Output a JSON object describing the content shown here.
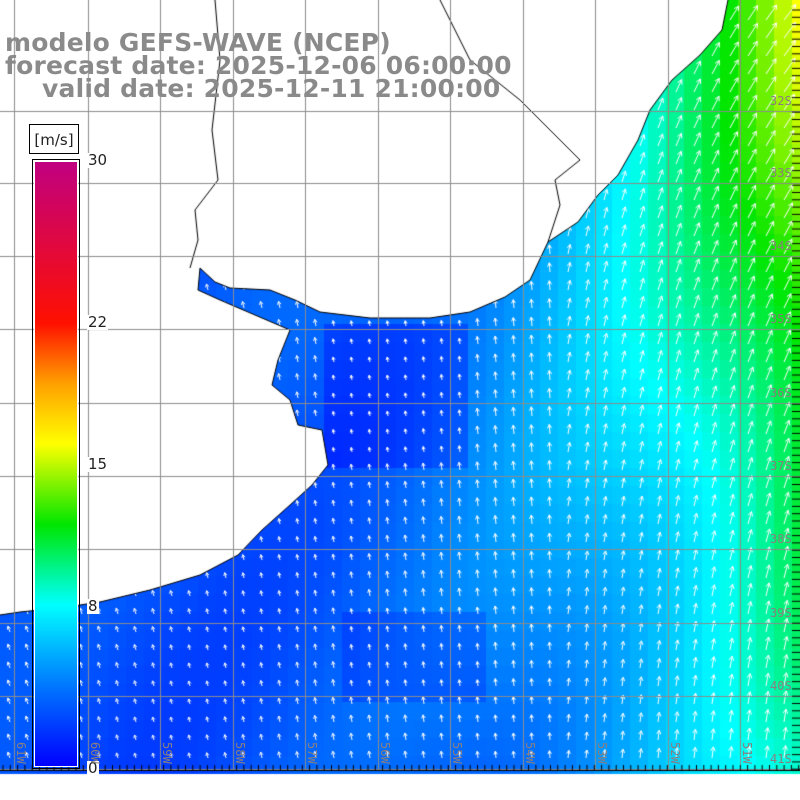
{
  "title": {
    "model": "modelo GEFS-WAVE (NCEP)",
    "forecast": "forecast date: 2025-12-06 06:00:00",
    "valid": "valid date: 2025-12-11 21:00:00"
  },
  "colorbar": {
    "units": "[m/s]",
    "ticks": [
      "30",
      "22",
      "15",
      "8",
      "0"
    ],
    "tick_values": [
      30,
      22,
      15,
      8,
      0
    ],
    "colors": [
      "#0000ff",
      "#0078ff",
      "#00ffff",
      "#00e600",
      "#ffff00",
      "#ffa000",
      "#ff1000",
      "#c00080"
    ],
    "color_stops": [
      0,
      4,
      8,
      12,
      16,
      19,
      22,
      30
    ]
  },
  "lat_labels": [
    "32S",
    "33S",
    "34S",
    "35S",
    "36S",
    "37S",
    "38S",
    "39S",
    "40S",
    "41S"
  ],
  "lon_labels": [
    "61W",
    "60W",
    "59W",
    "58W",
    "57W",
    "56W",
    "55W",
    "54W",
    "53W",
    "52W",
    "51W"
  ],
  "field": {
    "arrow_color": "#ffffff",
    "land_color": "#ffffff",
    "grid_color": "#8c8c8c"
  }
}
